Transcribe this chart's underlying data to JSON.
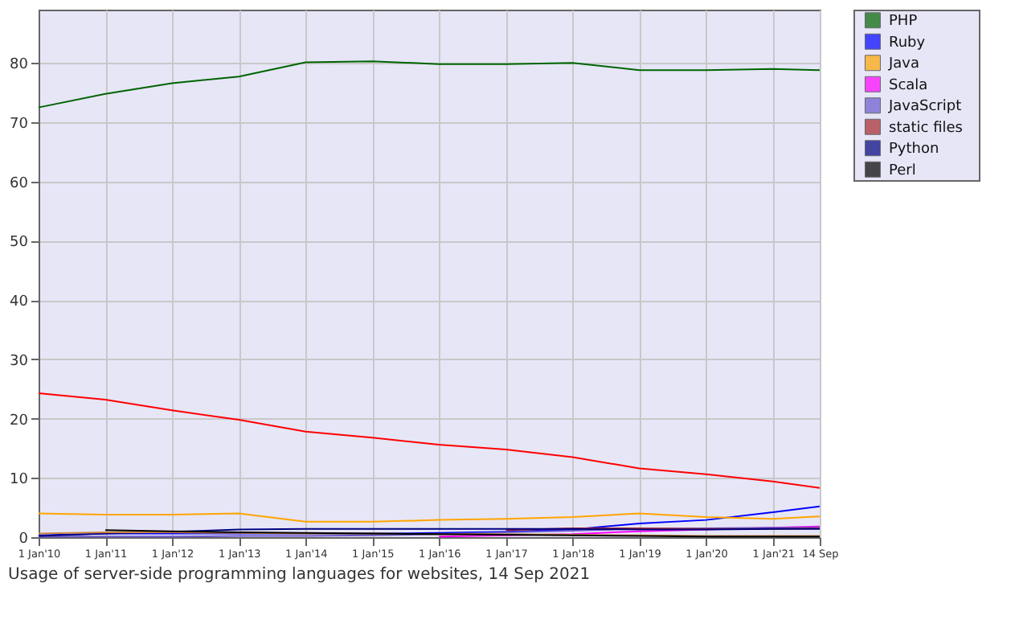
{
  "chart_data": {
    "type": "line",
    "x": [
      "2010-01-01",
      "2011-01-01",
      "2012-01-01",
      "2013-01-01",
      "2014-01-01",
      "2015-01-01",
      "2016-01-01",
      "2017-01-01",
      "2018-01-01",
      "2019-01-01",
      "2020-01-01",
      "2021-01-01",
      "2021-09-14"
    ],
    "series": [
      {
        "name": "PHP",
        "color": "#006400",
        "values": [
          72.5,
          74.8,
          76.6,
          77.7,
          80.1,
          80.3,
          79.8,
          79.8,
          80.0,
          78.8,
          78.8,
          79.0,
          78.8
        ]
      },
      {
        "color": "#ff0000",
        "values": [
          24.3,
          23.2,
          21.4,
          19.8,
          17.8,
          16.8,
          15.6,
          14.8,
          13.5,
          11.6,
          10.6,
          9.4,
          8.3
        ]
      },
      {
        "name": "Ruby",
        "color": "#0000ff",
        "values": [
          0.3,
          0.6,
          0.6,
          0.6,
          0.6,
          0.6,
          0.7,
          0.9,
          1.3,
          2.3,
          2.9,
          4.2,
          5.2
        ]
      },
      {
        "name": "Java",
        "color": "#ffa500",
        "values": [
          4.0,
          3.8,
          3.8,
          4.0,
          2.6,
          2.6,
          2.9,
          3.1,
          3.4,
          4.0,
          3.4,
          3.1,
          3.5
        ]
      },
      {
        "name": "Scala",
        "color": "#ff00ff",
        "values": [
          null,
          null,
          null,
          null,
          null,
          null,
          0.1,
          0.3,
          0.5,
          1.0,
          1.3,
          1.6,
          1.8
        ]
      },
      {
        "name": "JavaScript",
        "color": "#6a5acd",
        "values": [
          0.1,
          0.1,
          0.1,
          0.2,
          0.2,
          0.3,
          0.5,
          0.8,
          1.1,
          1.4,
          1.5,
          1.6,
          1.6
        ]
      },
      {
        "name": "static files",
        "color": "#a52a2a",
        "values": [
          null,
          null,
          null,
          null,
          null,
          null,
          null,
          1.2,
          1.5,
          1.5,
          1.4,
          1.4,
          1.5
        ]
      },
      {
        "name": "Python",
        "color": "#000080",
        "values": [
          0.2,
          0.6,
          0.9,
          1.3,
          1.4,
          1.4,
          1.4,
          1.4,
          1.4,
          1.3,
          1.3,
          1.4,
          1.4
        ]
      },
      {
        "color": "#cd853f",
        "values": [
          0.6,
          0.8,
          0.8,
          0.7,
          0.6,
          0.6,
          0.5,
          0.5,
          0.4,
          0.3,
          0.2,
          0.2,
          0.2
        ]
      },
      {
        "name": "Perl",
        "color": "#000000",
        "values": [
          null,
          1.2,
          1.0,
          0.8,
          0.7,
          0.6,
          0.5,
          0.4,
          0.3,
          0.2,
          0.1,
          0.1,
          0.1
        ]
      }
    ],
    "xlim": [
      "2010-01-01",
      "2021-09-14"
    ],
    "xticks": [
      {
        "value": "2010-01-01",
        "label": "1 Jan'10"
      },
      {
        "value": "2011-01-01",
        "label": "1 Jan'11"
      },
      {
        "value": "2012-01-01",
        "label": "1 Jan'12"
      },
      {
        "value": "2013-01-01",
        "label": "1 Jan'13"
      },
      {
        "value": "2014-01-01",
        "label": "1 Jan'14"
      },
      {
        "value": "2015-01-01",
        "label": "1 Jan'15"
      },
      {
        "value": "2016-01-01",
        "label": "1 Jan'16"
      },
      {
        "value": "2017-01-01",
        "label": "1 Jan'17"
      },
      {
        "value": "2018-01-01",
        "label": "1 Jan'18"
      },
      {
        "value": "2019-01-01",
        "label": "1 Jan'19"
      },
      {
        "value": "2020-01-01",
        "label": "1 Jan'20"
      },
      {
        "value": "2021-01-01",
        "label": "1 Jan'21"
      },
      {
        "value": "2021-09-14",
        "label": "14 Sep"
      }
    ],
    "ylim": [
      0,
      89
    ],
    "yticks": [
      0,
      10,
      20,
      30,
      40,
      50,
      60,
      70,
      80
    ],
    "grid": true,
    "legend": "right",
    "marker": "none",
    "line_style": "solid",
    "annotations": [
      "Usage of server-side programming languages for websites, 14 Sep 2021"
    ]
  }
}
